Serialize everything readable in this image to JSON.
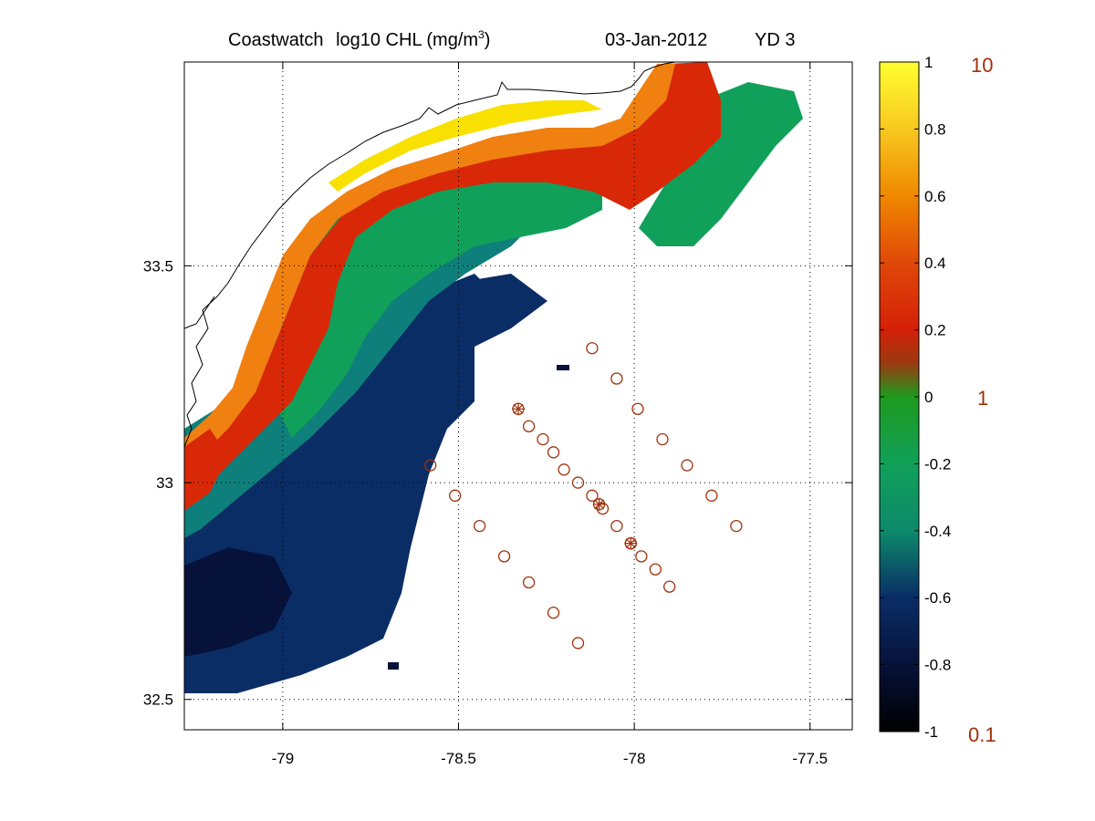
{
  "title": {
    "product": "Coastwatch",
    "variable_prefix": "log10  CHL (mg/m",
    "variable_exponent": "3",
    "variable_suffix": ")",
    "date": "03-Jan-2012",
    "yearday": "YD 3"
  },
  "map": {
    "lon_range": [
      -79.28,
      -77.38
    ],
    "lat_range": [
      32.43,
      33.97
    ],
    "x_ticks": [
      {
        "value": -79,
        "label": "-79"
      },
      {
        "value": -78.5,
        "label": "-78.5"
      },
      {
        "value": -78,
        "label": "-78"
      },
      {
        "value": -77.5,
        "label": "-77.5"
      }
    ],
    "y_ticks": [
      {
        "value": 33.5,
        "label": "33.5"
      },
      {
        "value": 33,
        "label": "33"
      },
      {
        "value": 32.5,
        "label": "32.5"
      }
    ],
    "grid": "dotted",
    "stations_circle": [
      [
        -78.12,
        33.31
      ],
      [
        -78.05,
        33.24
      ],
      [
        -77.99,
        33.17
      ],
      [
        -77.92,
        33.1
      ],
      [
        -77.85,
        33.04
      ],
      [
        -77.78,
        32.97
      ],
      [
        -77.71,
        32.9
      ],
      [
        -78.58,
        33.04
      ],
      [
        -78.51,
        32.97
      ],
      [
        -78.44,
        32.9
      ],
      [
        -78.37,
        32.83
      ],
      [
        -78.3,
        32.77
      ],
      [
        -78.23,
        32.7
      ],
      [
        -78.16,
        32.63
      ],
      [
        -78.3,
        33.13
      ],
      [
        -78.26,
        33.1
      ],
      [
        -78.23,
        33.07
      ],
      [
        -78.2,
        33.03
      ],
      [
        -78.16,
        33.0
      ],
      [
        -78.12,
        32.97
      ],
      [
        -78.09,
        32.94
      ],
      [
        -78.05,
        32.9
      ],
      [
        -78.01,
        32.86
      ],
      [
        -77.98,
        32.83
      ],
      [
        -77.94,
        32.8
      ],
      [
        -77.9,
        32.76
      ]
    ],
    "stations_star": [
      [
        -78.33,
        33.17
      ],
      [
        -78.1,
        32.95
      ],
      [
        -78.01,
        32.86
      ]
    ]
  },
  "colorbar": {
    "min": -1,
    "max": 1,
    "ticks": [
      "1",
      "0.8",
      "0.6",
      "0.4",
      "0.2",
      "0",
      "-0.2",
      "-0.4",
      "-0.6",
      "-0.8",
      "-1"
    ],
    "concentration_labels": [
      "10",
      "1",
      "0.1"
    ],
    "stops": [
      {
        "value": -1,
        "color": "#000000"
      },
      {
        "value": -0.8,
        "color": "#07123a"
      },
      {
        "value": -0.6,
        "color": "#0a2d66"
      },
      {
        "value": -0.4,
        "color": "#0c8a6a"
      },
      {
        "value": -0.2,
        "color": "#11a05a"
      },
      {
        "value": 0,
        "color": "#1e9a1e"
      },
      {
        "value": 0.1,
        "color": "#9a3a10"
      },
      {
        "value": 0.2,
        "color": "#d42008"
      },
      {
        "value": 0.4,
        "color": "#e04808"
      },
      {
        "value": 0.6,
        "color": "#f08800"
      },
      {
        "value": 0.8,
        "color": "#f8c820"
      },
      {
        "value": 1,
        "color": "#ffff30"
      }
    ]
  },
  "colors": {
    "station_marker": "#a0300a",
    "coastline": "#000000",
    "chl_yellow": "#f8e000",
    "chl_orange": "#f08010",
    "chl_red": "#d82808",
    "chl_green": "#11a05a",
    "chl_teal": "#0e7f7a",
    "chl_navy": "#0a2d66",
    "chl_dark": "#07123a"
  }
}
